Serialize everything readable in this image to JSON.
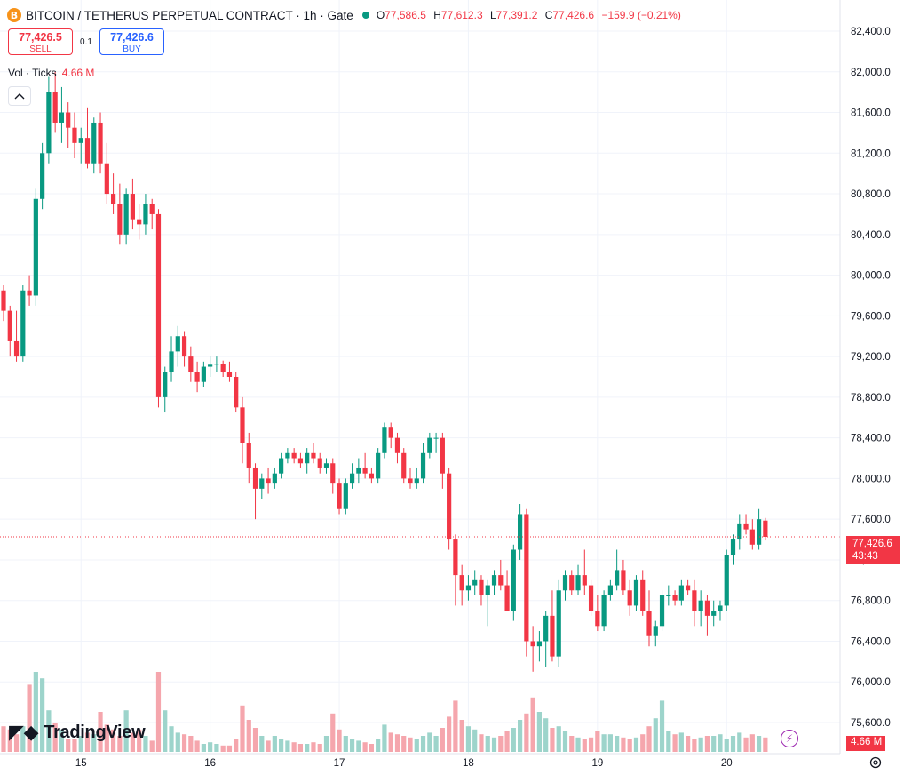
{
  "header": {
    "symbol_icon": "B",
    "title": "BITCOIN / TETHERUS PERPETUAL CONTRACT · 1h · Gate",
    "ohlc": {
      "o_label": "O",
      "o": "77,586.5",
      "h_label": "H",
      "h": "77,612.3",
      "l_label": "L",
      "l": "77,391.2",
      "c_label": "C",
      "c": "77,426.6",
      "change": "−159.9 (−0.21%)"
    }
  },
  "trade": {
    "sell_price": "77,426.5",
    "sell_label": "SELL",
    "spread": "0.1",
    "buy_price": "77,426.6",
    "buy_label": "BUY"
  },
  "volume_legend": {
    "label": "Vol · Ticks",
    "value": "4.66 M"
  },
  "price_scale": {
    "last_price": "77,426.6",
    "countdown": "43:43",
    "volume_value": "4.66 M"
  },
  "logo": {
    "text": "TradingView"
  },
  "colors": {
    "up": "#089981",
    "down": "#f23645",
    "up_volume": "#9dd4cb",
    "down_volume": "#f5a6ad",
    "grid": "#f0f3fa"
  },
  "chart_data": {
    "type": "candlestick",
    "interval": "1h",
    "ylim": [
      75400,
      82600
    ],
    "y_ticks": [
      "82,400.0",
      "82,000.0",
      "81,600.0",
      "81,200.0",
      "80,800.0",
      "80,400.0",
      "80,000.0",
      "79,600.0",
      "79,200.0",
      "78,800.0",
      "78,400.0",
      "78,000.0",
      "77,600.0",
      "77,200.0",
      "76,800.0",
      "76,400.0",
      "76,000.0",
      "75,600.0"
    ],
    "x_ticks": [
      {
        "label": "15",
        "index": 12
      },
      {
        "label": "16",
        "index": 32
      },
      {
        "label": "17",
        "index": 52
      },
      {
        "label": "18",
        "index": 72
      },
      {
        "label": "19",
        "index": 92
      },
      {
        "label": "20",
        "index": 112
      }
    ],
    "candles": [
      [
        79850,
        79900,
        79550,
        79650
      ],
      [
        79650,
        79700,
        79200,
        79350
      ],
      [
        79350,
        79650,
        79150,
        79200
      ],
      [
        79200,
        79900,
        79150,
        79850
      ],
      [
        79850,
        80000,
        79700,
        79800
      ],
      [
        79800,
        80850,
        79700,
        80750
      ],
      [
        80750,
        81300,
        80650,
        81200
      ],
      [
        81200,
        81950,
        81100,
        81800
      ],
      [
        81800,
        82000,
        81400,
        81500
      ],
      [
        81500,
        81850,
        81300,
        81600
      ],
      [
        81600,
        81700,
        81250,
        81450
      ],
      [
        81450,
        81600,
        81150,
        81300
      ],
      [
        81300,
        81450,
        81100,
        81350
      ],
      [
        81350,
        81650,
        81050,
        81100
      ],
      [
        81100,
        81550,
        81000,
        81500
      ],
      [
        81500,
        81600,
        81000,
        81100
      ],
      [
        81100,
        81300,
        80700,
        80800
      ],
      [
        80800,
        81000,
        80600,
        80700
      ],
      [
        80700,
        80900,
        80300,
        80400
      ],
      [
        80400,
        80850,
        80300,
        80800
      ],
      [
        80800,
        80950,
        80450,
        80550
      ],
      [
        80550,
        80700,
        80350,
        80500
      ],
      [
        80500,
        80800,
        80400,
        80700
      ],
      [
        80700,
        80750,
        80450,
        80600
      ],
      [
        80600,
        80650,
        78700,
        78800
      ],
      [
        78800,
        79100,
        78650,
        79050
      ],
      [
        79050,
        79400,
        78950,
        79250
      ],
      [
        79250,
        79500,
        79100,
        79400
      ],
      [
        79400,
        79450,
        79100,
        79200
      ],
      [
        79200,
        79300,
        78950,
        79050
      ],
      [
        79050,
        79150,
        78850,
        78950
      ],
      [
        78950,
        79150,
        78900,
        79100
      ],
      [
        79100,
        79200,
        79000,
        79120
      ],
      [
        79120,
        79200,
        79050,
        79130
      ],
      [
        79130,
        79160,
        79000,
        79050
      ],
      [
        79050,
        79150,
        78950,
        79000
      ],
      [
        79000,
        79050,
        78650,
        78700
      ],
      [
        78700,
        78800,
        78150,
        78350
      ],
      [
        78350,
        78450,
        77950,
        78100
      ],
      [
        78100,
        78150,
        77600,
        77900
      ],
      [
        77900,
        78050,
        77800,
        78000
      ],
      [
        78000,
        78100,
        77850,
        77950
      ],
      [
        77950,
        78100,
        77900,
        78050
      ],
      [
        78050,
        78250,
        78000,
        78200
      ],
      [
        78200,
        78300,
        78150,
        78250
      ],
      [
        78250,
        78300,
        78150,
        78200
      ],
      [
        78200,
        78250,
        78100,
        78150
      ],
      [
        78150,
        78300,
        78050,
        78250
      ],
      [
        78250,
        78350,
        78150,
        78200
      ],
      [
        78200,
        78250,
        78050,
        78100
      ],
      [
        78100,
        78200,
        78050,
        78150
      ],
      [
        78150,
        78200,
        77850,
        77950
      ],
      [
        77950,
        78000,
        77650,
        77700
      ],
      [
        77700,
        78000,
        77650,
        77950
      ],
      [
        77950,
        78150,
        77900,
        78050
      ],
      [
        78050,
        78200,
        77950,
        78100
      ],
      [
        78100,
        78250,
        78000,
        78050
      ],
      [
        78050,
        78100,
        77950,
        78000
      ],
      [
        78000,
        78300,
        77950,
        78250
      ],
      [
        78250,
        78550,
        78200,
        78500
      ],
      [
        78500,
        78550,
        78300,
        78400
      ],
      [
        78400,
        78450,
        78150,
        78250
      ],
      [
        78250,
        78300,
        77950,
        78000
      ],
      [
        78000,
        78100,
        77900,
        77950
      ],
      [
        77950,
        78100,
        77900,
        78000
      ],
      [
        78000,
        78350,
        77950,
        78250
      ],
      [
        78250,
        78450,
        78200,
        78400
      ],
      [
        78400,
        78450,
        78250,
        78400
      ],
      [
        78400,
        78450,
        77900,
        78050
      ],
      [
        78050,
        78100,
        77300,
        77400
      ],
      [
        77400,
        77450,
        76750,
        77050
      ],
      [
        77050,
        77150,
        76750,
        76900
      ],
      [
        76900,
        77050,
        76800,
        76950
      ],
      [
        76950,
        77100,
        76850,
        77000
      ],
      [
        77000,
        77050,
        76750,
        76850
      ],
      [
        76850,
        77000,
        76550,
        76950
      ],
      [
        76950,
        77100,
        76850,
        77050
      ],
      [
        77050,
        77200,
        76900,
        76950
      ],
      [
        76950,
        77100,
        76700,
        76700
      ],
      [
        76700,
        77350,
        76600,
        77300
      ],
      [
        77300,
        77750,
        77200,
        77650
      ],
      [
        77650,
        77700,
        76250,
        76400
      ],
      [
        76400,
        76550,
        76100,
        76350
      ],
      [
        76350,
        76500,
        76200,
        76400
      ],
      [
        76400,
        76700,
        76150,
        76650
      ],
      [
        76650,
        76900,
        76200,
        76250
      ],
      [
        76250,
        77000,
        76150,
        76900
      ],
      [
        76900,
        77100,
        76800,
        77050
      ],
      [
        77050,
        77100,
        76850,
        76900
      ],
      [
        76900,
        77150,
        76850,
        77050
      ],
      [
        77050,
        77300,
        76850,
        76950
      ],
      [
        76950,
        77000,
        76650,
        76700
      ],
      [
        76700,
        76850,
        76500,
        76550
      ],
      [
        76550,
        76900,
        76500,
        76850
      ],
      [
        76850,
        77000,
        76800,
        76950
      ],
      [
        76950,
        77300,
        76900,
        77100
      ],
      [
        77100,
        77200,
        76850,
        76900
      ],
      [
        76900,
        77000,
        76650,
        76750
      ],
      [
        76750,
        77050,
        76700,
        77000
      ],
      [
        77000,
        77100,
        76650,
        76700
      ],
      [
        76700,
        76900,
        76350,
        76450
      ],
      [
        76450,
        76600,
        76350,
        76550
      ],
      [
        76550,
        76900,
        76500,
        76850
      ],
      [
        76850,
        76950,
        76750,
        76850
      ],
      [
        76850,
        76900,
        76750,
        76800
      ],
      [
        76800,
        77000,
        76750,
        76950
      ],
      [
        76950,
        77000,
        76850,
        76900
      ],
      [
        76900,
        77000,
        76550,
        76700
      ],
      [
        76700,
        76900,
        76550,
        76800
      ],
      [
        76800,
        76850,
        76450,
        76650
      ],
      [
        76650,
        76800,
        76550,
        76700
      ],
      [
        76700,
        76800,
        76600,
        76750
      ],
      [
        76750,
        77300,
        76700,
        77250
      ],
      [
        77250,
        77450,
        77150,
        77400
      ],
      [
        77400,
        77650,
        77300,
        77550
      ],
      [
        77550,
        77650,
        77450,
        77500
      ],
      [
        77500,
        77600,
        77300,
        77350
      ],
      [
        77350,
        77700,
        77300,
        77600
      ],
      [
        77586.5,
        77612.3,
        77391.2,
        77426.6
      ]
    ],
    "volumes": [
      0.8,
      0.7,
      0.55,
      0.8,
      2.1,
      2.5,
      2.3,
      1.3,
      0.9,
      0.7,
      0.4,
      0.4,
      0.5,
      0.6,
      0.55,
      1.25,
      0.85,
      0.7,
      0.5,
      1.3,
      0.6,
      0.7,
      0.5,
      0.35,
      2.5,
      1.3,
      0.8,
      0.6,
      0.55,
      0.5,
      0.35,
      0.25,
      0.3,
      0.25,
      0.2,
      0.2,
      0.4,
      1.45,
      1.0,
      0.75,
      0.5,
      0.35,
      0.5,
      0.4,
      0.35,
      0.3,
      0.25,
      0.25,
      0.3,
      0.25,
      0.5,
      1.2,
      0.7,
      0.5,
      0.4,
      0.35,
      0.3,
      0.25,
      0.4,
      0.85,
      0.6,
      0.55,
      0.5,
      0.45,
      0.4,
      0.5,
      0.6,
      0.5,
      0.75,
      1.1,
      1.6,
      1.0,
      0.8,
      0.7,
      0.55,
      0.5,
      0.45,
      0.5,
      0.65,
      0.75,
      1.0,
      1.2,
      1.7,
      1.25,
      1.05,
      0.75,
      0.8,
      0.65,
      0.5,
      0.45,
      0.4,
      0.45,
      0.65,
      0.55,
      0.55,
      0.5,
      0.45,
      0.4,
      0.45,
      0.55,
      0.8,
      1.05,
      1.6,
      0.65,
      0.55,
      0.6,
      0.5,
      0.4,
      0.45,
      0.5,
      0.5,
      0.55,
      0.4,
      0.5,
      0.6,
      0.45,
      0.55,
      0.5,
      0.45
    ]
  }
}
